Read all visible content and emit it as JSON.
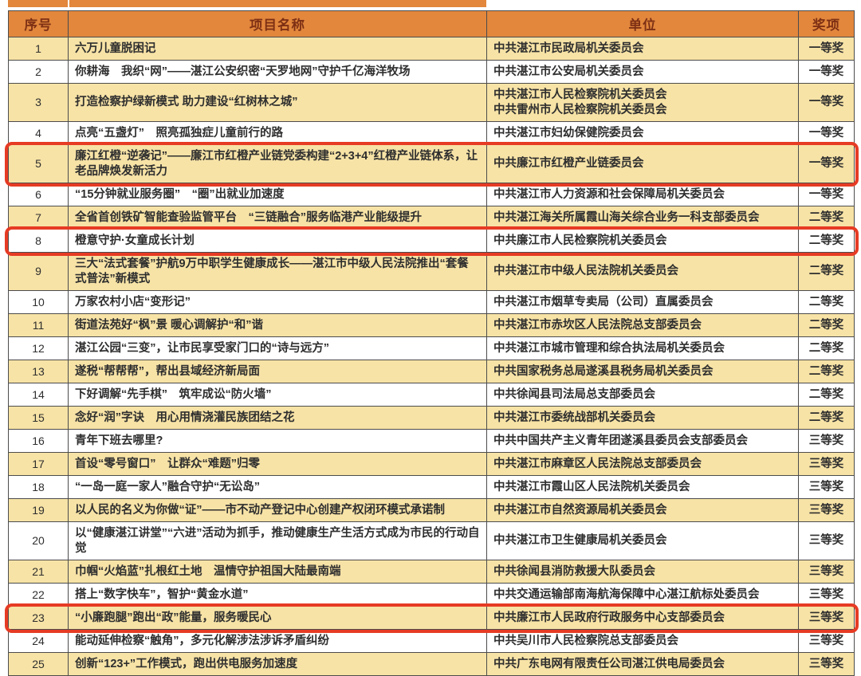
{
  "colors": {
    "header_bg": "#E2873C",
    "header_text": "#7E3014",
    "row_alt_bg": "#F7E3A6",
    "row_bg": "#FFFFFF",
    "grid_line": "#4C4C4C",
    "highlight_border": "#E63B24"
  },
  "table": {
    "columns": [
      {
        "key": "index",
        "label": "序号"
      },
      {
        "key": "name",
        "label": "项目名称"
      },
      {
        "key": "unit",
        "label": "单位"
      },
      {
        "key": "award",
        "label": "奖项"
      }
    ],
    "rows": [
      {
        "index": "1",
        "name": "六万儿童脱困记",
        "unit": "中共湛江市民政局机关委员会",
        "award": "一等奖",
        "highlighted": false
      },
      {
        "index": "2",
        "name": "你耕海　我织“网”——湛江公安织密“天罗地网”守护千亿海洋牧场",
        "unit": "中共湛江市公安局机关委员会",
        "award": "一等奖",
        "highlighted": false
      },
      {
        "index": "3",
        "name": "打造检察护绿新模式 助力建设“红树林之城”",
        "unit": "中共湛江市人民检察院机关委员会\n中共雷州市人民检察院机关委员会",
        "award": "一等奖",
        "highlighted": false
      },
      {
        "index": "4",
        "name": "点亮“五盏灯”　照亮孤独症儿童前行的路",
        "unit": "中共湛江市妇幼保健院委员会",
        "award": "一等奖",
        "highlighted": false
      },
      {
        "index": "5",
        "name": "廉江红橙“逆袭记”——廉江市红橙产业链党委构建“2+3+4”红橙产业链体系，让老品牌焕发新活力",
        "unit": "中共廉江市红橙产业链委员会",
        "award": "一等奖",
        "highlighted": true
      },
      {
        "index": "6",
        "name": "“15分钟就业服务圈”　“圈”出就业加速度",
        "unit": "中共湛江市人力资源和社会保障局机关委员会",
        "award": "一等奖",
        "highlighted": false
      },
      {
        "index": "7",
        "name": "全省首创铁矿智能查验监管平台　“三链融合”服务临港产业能级提升",
        "unit": "中共湛江海关所属霞山海关综合业务一科支部委员会",
        "award": "二等奖",
        "highlighted": false
      },
      {
        "index": "8",
        "name": "橙意守护·女童成长计划",
        "unit": "中共廉江市人民检察院机关委员会",
        "award": "二等奖",
        "highlighted": true
      },
      {
        "index": "9",
        "name": "三大“法式套餐”护航9万中职学生健康成长——湛江市中级人民法院推出“套餐式普法”新模式",
        "unit": "中共湛江市中级人民法院机关委员会",
        "award": "二等奖",
        "highlighted": false
      },
      {
        "index": "10",
        "name": "万家农村小店“变形记”",
        "unit": "中共湛江市烟草专卖局（公司）直属委员会",
        "award": "二等奖",
        "highlighted": false
      },
      {
        "index": "11",
        "name": "街道法苑好“枫”景 暖心调解护“和”谐",
        "unit": "中共湛江市赤坎区人民法院总支部委员会",
        "award": "二等奖",
        "highlighted": false
      },
      {
        "index": "12",
        "name": "湛江公园“三变”，让市民享受家门口的“诗与远方”",
        "unit": "中共湛江市城市管理和综合执法局机关委员会",
        "award": "二等奖",
        "highlighted": false
      },
      {
        "index": "13",
        "name": "遂税“帮帮帮”，帮出县域经济新局面",
        "unit": "中共国家税务总局遂溪县税务局机关委员会",
        "award": "二等奖",
        "highlighted": false
      },
      {
        "index": "14",
        "name": "下好调解“先手棋”　筑牢成讼“防火墙”",
        "unit": "中共徐闻县司法局总支部委员会",
        "award": "二等奖",
        "highlighted": false
      },
      {
        "index": "15",
        "name": "念好“润”字诀　用心用情浇灌民族团结之花",
        "unit": "中共湛江市委统战部机关委员会",
        "award": "二等奖",
        "highlighted": false
      },
      {
        "index": "16",
        "name": "青年下班去哪里?",
        "unit": "中共中国共产主义青年团遂溪县委员会支部委员会",
        "award": "三等奖",
        "highlighted": false
      },
      {
        "index": "17",
        "name": "首设“零号窗口”　让群众“难题”归零",
        "unit": "中共湛江市麻章区人民法院总支部委员会",
        "award": "三等奖",
        "highlighted": false
      },
      {
        "index": "18",
        "name": "“一岛一庭一家人”融合守护“无讼岛”",
        "unit": "中共湛江市霞山区人民法院机关委员会",
        "award": "三等奖",
        "highlighted": false
      },
      {
        "index": "19",
        "name": "以人民的名义为你做“证”——市不动产登记中心创建产权闭环模式承诺制",
        "unit": "中共湛江市自然资源局机关委员会",
        "award": "三等奖",
        "highlighted": false
      },
      {
        "index": "20",
        "name": "以“健康湛江讲堂”“六进”活动为抓手，推动健康生产生活方式成为市民的行动自觉",
        "unit": "中共湛江市卫生健康局机关委员会",
        "award": "三等奖",
        "highlighted": false
      },
      {
        "index": "21",
        "name": "巾帼“火焰蓝”扎根红土地　温情守护祖国大陆最南端",
        "unit": "中共徐闻县消防救援大队委员会",
        "award": "三等奖",
        "highlighted": false
      },
      {
        "index": "22",
        "name": "搭上“数字快车”，智护“黄金水道”",
        "unit": "中共交通运输部南海航海保障中心湛江航标处委员会",
        "award": "三等奖",
        "highlighted": false
      },
      {
        "index": "23",
        "name": "“小廉跑腿”跑出“政”能量，服务暖民心",
        "unit": "中共廉江市人民政府行政服务中心支部委员会",
        "award": "三等奖",
        "highlighted": true
      },
      {
        "index": "24",
        "name": "能动延伸检察“触角”，多元化解涉法涉诉矛盾纠纷",
        "unit": "中共吴川市人民检察院总支部委员会",
        "award": "三等奖",
        "highlighted": false
      },
      {
        "index": "25",
        "name": "创新“123+”工作模式，跑出供电服务加速度",
        "unit": "中共广东电网有限责任公司湛江供电局委员会",
        "award": "三等奖",
        "highlighted": false
      }
    ]
  }
}
